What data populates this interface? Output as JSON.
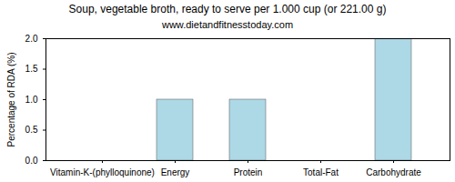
{
  "chart_data": {
    "type": "bar",
    "title": "Soup, vegetable broth, ready to serve per 1.000 cup (or 221.00 g)",
    "subtitle": "www.dietandfitnesstoday.com",
    "y_label": "Percentage of RDA (%)",
    "categories": [
      "Vitamin-K-(phylloquinone)",
      "Energy",
      "Protein",
      "Total-Fat",
      "Carbohydrate"
    ],
    "values": [
      0,
      1,
      1,
      0,
      2
    ],
    "color": "#add8e6",
    "ylim": [
      0,
      2
    ],
    "yticks": [
      {
        "value": 0,
        "label": "0.0"
      },
      {
        "value": 0.5,
        "label": "0.5"
      },
      {
        "value": 1,
        "label": "1.0"
      },
      {
        "value": 1.5,
        "label": "1.5"
      },
      {
        "value": 2,
        "label": "2.0"
      }
    ],
    "grid": false
  }
}
